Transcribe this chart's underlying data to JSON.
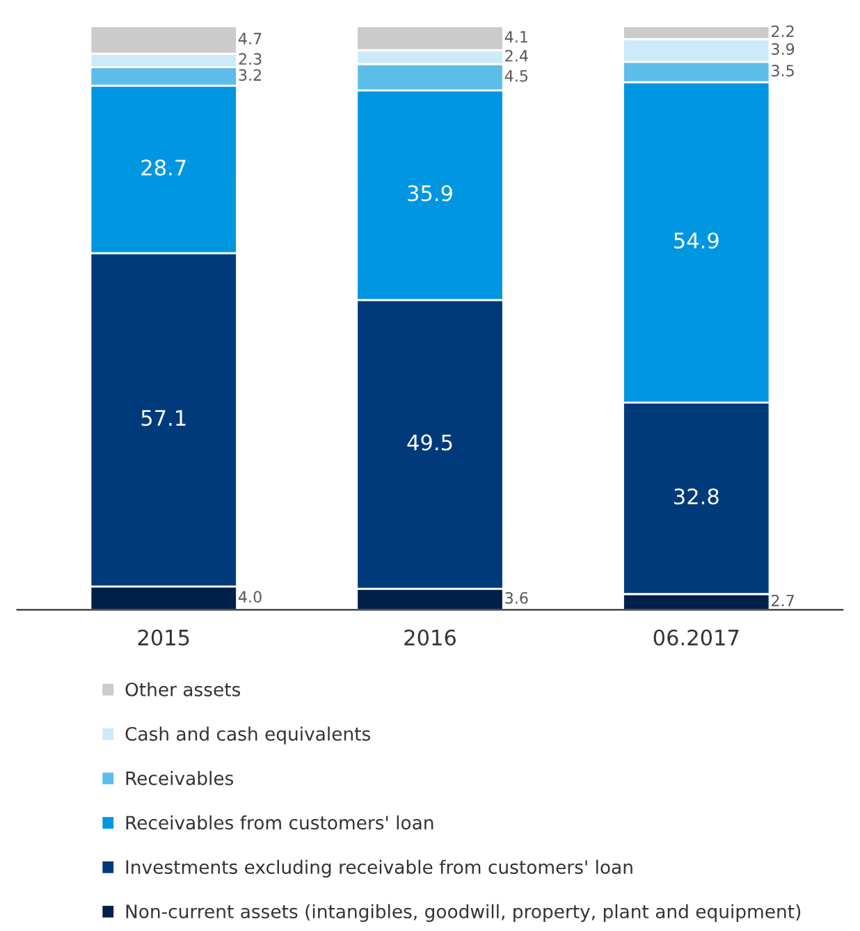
{
  "chart_data": {
    "type": "bar",
    "stacked": true,
    "data_labels": true,
    "legend": "bottom",
    "grid": false,
    "categories": [
      "2015",
      "2016",
      "06.2017"
    ],
    "series": [
      {
        "name": "Non-current assets (intangibles, goodwill, property, plant and equipment)",
        "color": "#00204a",
        "values": [
          4.0,
          3.6,
          2.7
        ],
        "value_labels": [
          "4.0",
          "3.6",
          "2.7"
        ]
      },
      {
        "name": "Investments excluding receivable from customers' loan",
        "color": "#003a7a",
        "values": [
          57.1,
          49.5,
          32.8
        ]
      },
      {
        "name": "Receivables from customers' loan",
        "color": "#0096e1",
        "values": [
          28.7,
          35.9,
          54.9
        ]
      },
      {
        "name": "Receivables",
        "color": "#5cbde9",
        "values": [
          3.2,
          4.5,
          3.5
        ]
      },
      {
        "name": "Cash and cash equivalents",
        "color": "#cdeaf9",
        "values": [
          2.3,
          2.4,
          3.9
        ]
      },
      {
        "name": "Other assets",
        "color": "#cbcbcb",
        "values": [
          4.7,
          4.1,
          2.2
        ]
      }
    ]
  }
}
